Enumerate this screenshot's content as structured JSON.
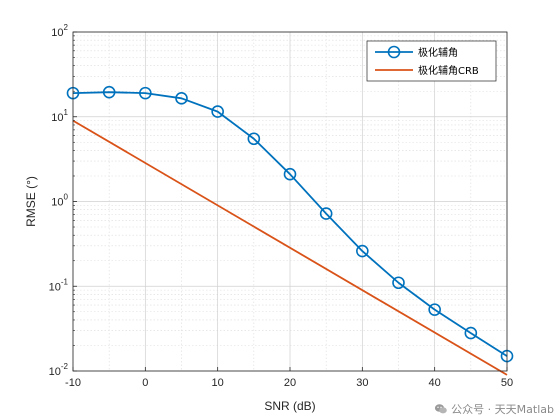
{
  "chart_data": {
    "type": "line",
    "xlabel": "SNR (dB)",
    "ylabel": "RMSE (°)",
    "xlim": [
      -10,
      50
    ],
    "ylim": [
      0.01,
      100
    ],
    "yscale": "log",
    "grid": true,
    "minor_grid": true,
    "legend_placement": "top-right",
    "x_ticks": [
      "-10",
      "0",
      "10",
      "20",
      "30",
      "40",
      "50"
    ],
    "y_ticks": [
      {
        "base": "10",
        "exp": "2"
      },
      {
        "base": "10",
        "exp": "1"
      },
      {
        "base": "10",
        "exp": "0"
      },
      {
        "base": "10",
        "exp": "-1"
      },
      {
        "base": "10",
        "exp": "-2"
      }
    ],
    "series": [
      {
        "name": "极化辅角",
        "color": "#0072BD",
        "marker": "circle",
        "x": [
          -10,
          -5,
          0,
          5,
          10,
          15,
          20,
          25,
          30,
          35,
          40,
          45,
          50
        ],
        "y": [
          19.0,
          19.5,
          19.0,
          16.5,
          11.5,
          5.5,
          2.1,
          0.72,
          0.26,
          0.11,
          0.053,
          0.028,
          0.015
        ]
      },
      {
        "name": "极化辅角CRB",
        "color": "#D95319",
        "marker": "none",
        "x": [
          -10,
          50
        ],
        "y": [
          9.0,
          0.009
        ]
      }
    ]
  },
  "watermark": {
    "text": "公众号 · 天天Matlab"
  }
}
